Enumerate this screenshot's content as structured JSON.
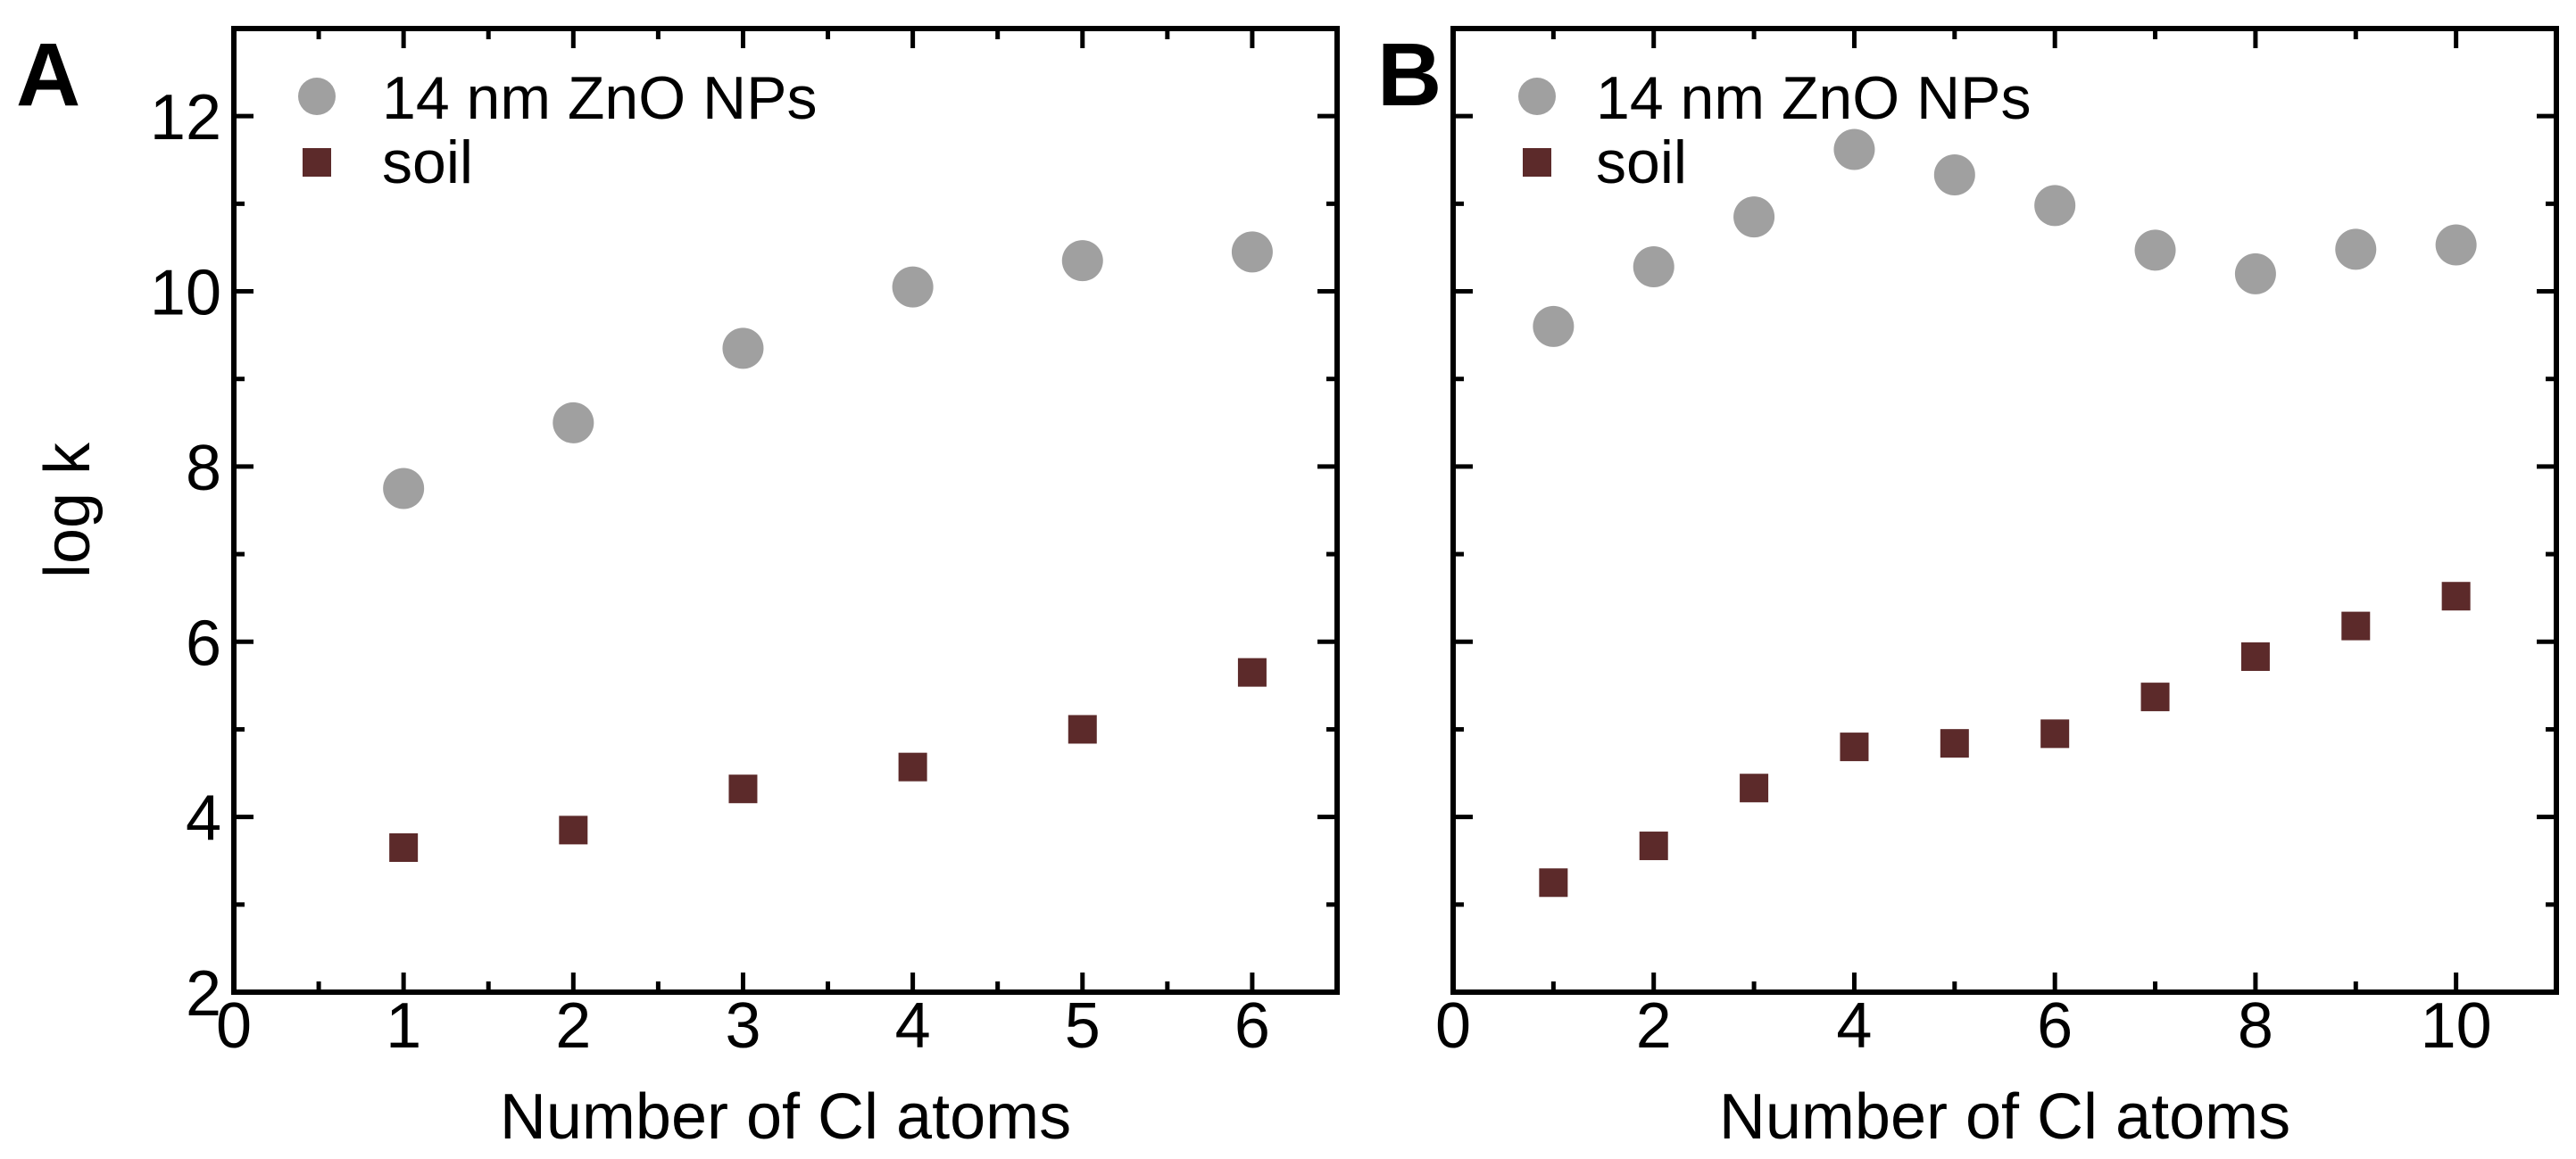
{
  "chart_data": [
    {
      "panel": "A",
      "type": "scatter",
      "xlabel": "Number of Cl atoms",
      "ylabel": "log k",
      "xlim": [
        0,
        6.5
      ],
      "ylim": [
        2,
        13
      ],
      "x_major_ticks": [
        0,
        1,
        2,
        3,
        4,
        5,
        6
      ],
      "y_major_ticks": [
        2,
        4,
        6,
        8,
        10,
        12
      ],
      "x_minor_ticks": [
        0.5,
        1.5,
        2.5,
        3.5,
        4.5,
        5.5
      ],
      "y_minor_ticks": [
        3,
        5,
        7,
        9,
        11
      ],
      "show_x_tick_labels": true,
      "show_y_tick_labels": true,
      "legend": "top-left",
      "series": [
        {
          "name": "14 nm ZnO NPs",
          "marker": "circle",
          "color": "#a0a0a0",
          "x": [
            1,
            2,
            3,
            4,
            5,
            6
          ],
          "y": [
            7.75,
            8.5,
            9.35,
            10.05,
            10.35,
            10.45
          ]
        },
        {
          "name": "soil",
          "marker": "square",
          "color": "#5c2a2a",
          "x": [
            1,
            2,
            3,
            4,
            5,
            6
          ],
          "y": [
            3.65,
            3.85,
            4.32,
            4.57,
            5.0,
            5.65
          ]
        }
      ]
    },
    {
      "panel": "B",
      "type": "scatter",
      "xlabel": "Number of Cl atoms",
      "ylabel": "",
      "xlim": [
        0,
        11
      ],
      "ylim": [
        2,
        13
      ],
      "x_major_ticks": [
        0,
        2,
        4,
        6,
        8,
        10
      ],
      "y_major_ticks": [
        2,
        4,
        6,
        8,
        10,
        12
      ],
      "x_minor_ticks": [
        1,
        3,
        5,
        7,
        9
      ],
      "y_minor_ticks": [
        3,
        5,
        7,
        9,
        11
      ],
      "show_x_tick_labels": true,
      "show_y_tick_labels": false,
      "legend": "top-left",
      "series": [
        {
          "name": "14 nm ZnO NPs",
          "marker": "circle",
          "color": "#a0a0a0",
          "x": [
            1,
            2,
            3,
            4,
            5,
            6,
            7,
            8,
            9,
            10
          ],
          "y": [
            9.6,
            10.28,
            10.85,
            11.62,
            11.33,
            10.98,
            10.47,
            10.2,
            10.48,
            10.53
          ]
        },
        {
          "name": "soil",
          "marker": "square",
          "color": "#5c2a2a",
          "x": [
            1,
            2,
            3,
            4,
            5,
            6,
            7,
            8,
            9,
            10
          ],
          "y": [
            3.25,
            3.67,
            4.33,
            4.8,
            4.84,
            4.95,
            5.37,
            5.83,
            6.18,
            6.52
          ]
        }
      ]
    }
  ]
}
